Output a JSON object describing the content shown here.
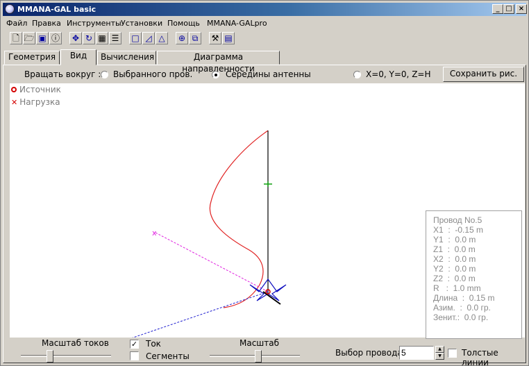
{
  "window": {
    "title": "MMANA-GAL basic",
    "min_glyph": "_",
    "max_glyph": "□",
    "close_glyph": "×"
  },
  "menu": [
    "Файл",
    "Правка",
    "Инструменты",
    "Установки",
    "Помощь",
    "MMANA-GALpro"
  ],
  "tabs": [
    {
      "label": "Геометрия"
    },
    {
      "label": "Вид",
      "active": true
    },
    {
      "label": "Вычисления"
    },
    {
      "label": "Диаграмма направленности"
    }
  ],
  "rotate": {
    "label": "Вращать вокруг :",
    "options": [
      {
        "label": "Выбранного пров.",
        "checked": false
      },
      {
        "label": "Середины антенны",
        "checked": true
      },
      {
        "label": "X=0, Y=0, Z=H",
        "checked": false
      }
    ],
    "save_button": "Сохранить рис."
  },
  "legend": {
    "source": "Источник",
    "load": "Нагрузка"
  },
  "colors": {
    "current": "#e02020",
    "wire": "#000000",
    "axis_x": "#e020e0",
    "axis_y": "#2020d0",
    "base": "#1010c0"
  },
  "wire_info": {
    "title": "Провод No.5",
    "rows": [
      "X1  :  -0.15 m",
      "Y1  :  0.0 m",
      "Z1  :  0.0 m",
      "X2  :  0.0 m",
      "Y2  :  0.0 m",
      "Z2  :  0.0 m",
      "R   :  1.0 mm",
      "Длина  :  0.15 m",
      "Азим.  :  0.0 гр.",
      "Зенит.:  0.0 гр."
    ]
  },
  "bottom": {
    "current_scale_label": "Масштаб токов",
    "current_label": "Ток",
    "current_checked": true,
    "segments_label": "Сегменты",
    "segments_checked": false,
    "scale_label": "Масштаб",
    "wire_select_label": "Выбор провода",
    "wire_select_value": "5",
    "thick_lines_label": "Толстые линии",
    "thick_lines_checked": false
  }
}
